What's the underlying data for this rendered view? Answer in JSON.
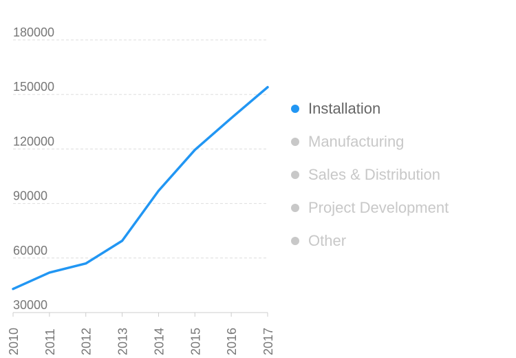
{
  "chart_data": {
    "type": "line",
    "x": [
      "2010",
      "2011",
      "2012",
      "2013",
      "2014",
      "2015",
      "2016",
      "2017"
    ],
    "series": [
      {
        "name": "Installation",
        "values": [
          43000,
          52000,
          57000,
          69500,
          97000,
          119500,
          137000,
          154000
        ],
        "color": "#2196f3",
        "active": true
      }
    ],
    "yticks": [
      30000,
      60000,
      90000,
      120000,
      150000,
      180000
    ],
    "ylim": [
      25000,
      185000
    ],
    "grid": true,
    "legend_position": "right",
    "legend": [
      {
        "label": "Installation",
        "active": true
      },
      {
        "label": "Manufacturing",
        "active": false
      },
      {
        "label": "Sales & Distribution",
        "active": false
      },
      {
        "label": "Project Development",
        "active": false
      },
      {
        "label": "Other",
        "active": false
      }
    ]
  },
  "colors": {
    "active_series": "#2196f3",
    "inactive_legend": "#c8c8c8",
    "active_legend_text": "#666666",
    "tick_text": "#777777",
    "gridline": "#dddddd",
    "axis_line": "#cccccc"
  }
}
